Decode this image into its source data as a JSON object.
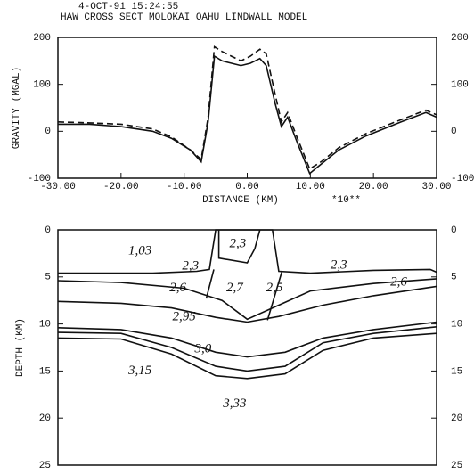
{
  "chart_data": [
    {
      "type": "line",
      "title": "4-OCT-91  15:24:55",
      "subtitle": "HAW CROSS SECT MOLOKAI OAHU    LINDWALL MODEL",
      "xlabel": "DISTANCE (KM)",
      "xlabel_note": "*10**",
      "ylabel": "GRAVITY (MGAL)",
      "x": [
        -30,
        -25,
        -20,
        -15,
        -12,
        -9,
        -7.3,
        -6.2,
        -5.2,
        -4,
        -2.5,
        -1,
        0.5,
        2,
        3,
        4.4,
        5.4,
        6.4,
        7.8,
        9.9,
        11.7,
        14.5,
        18.8,
        24.4,
        28.3,
        30
      ],
      "series": [
        {
          "color": "#111111",
          "dashed": false,
          "values": [
            15,
            15,
            10,
            0,
            -15,
            -40,
            -65,
            20,
            160,
            150,
            145,
            140,
            145,
            155,
            140,
            60,
            10,
            30,
            -20,
            -90,
            -70,
            -40,
            -10,
            20,
            40,
            30
          ]
        },
        {
          "color": "#111111",
          "dashed": true,
          "values": [
            20,
            18,
            15,
            5,
            -12,
            -40,
            -60,
            30,
            180,
            170,
            160,
            150,
            160,
            175,
            165,
            80,
            20,
            40,
            -10,
            -80,
            -65,
            -35,
            -5,
            25,
            45,
            35
          ]
        }
      ],
      "xlim": [
        -30,
        30
      ],
      "ylim": [
        -100,
        200
      ],
      "xticks": [
        {
          "value": -30,
          "label": "-30.00"
        },
        {
          "value": -20,
          "label": "-20.00"
        },
        {
          "value": -10,
          "label": "-10.00"
        },
        {
          "value": 0,
          "label": "0.00"
        },
        {
          "value": 10,
          "label": "10.00"
        },
        {
          "value": 20,
          "label": "20.00"
        },
        {
          "value": 30,
          "label": "30.00"
        }
      ],
      "yticks": [
        -100,
        0,
        100,
        200
      ]
    },
    {
      "type": "line",
      "ylabel": "DEPTH (KM)",
      "inverted": true,
      "xlim": [
        -30,
        30
      ],
      "ylim": [
        0,
        25
      ],
      "yticks": [
        0,
        5,
        10,
        15,
        20,
        25
      ],
      "series": [
        {
          "color": "#111111",
          "x": [
            -30,
            -15,
            -8,
            -6,
            -5,
            4,
            5,
            10,
            20,
            29,
            30
          ],
          "values": [
            4.6,
            4.6,
            4.4,
            4.2,
            0,
            0,
            4.4,
            4.6,
            4.3,
            4.2,
            4.5
          ]
        },
        {
          "color": "#111111",
          "x": [
            -30,
            -20,
            -10,
            -4,
            0,
            5,
            10,
            20,
            30
          ],
          "values": [
            5.4,
            5.6,
            6.2,
            7.5,
            9.5,
            8,
            6.5,
            5.7,
            5.2
          ]
        },
        {
          "color": "#111111",
          "x": [
            -30,
            -20,
            -12,
            -5,
            0,
            5,
            12,
            20,
            30
          ],
          "values": [
            7.6,
            7.8,
            8.3,
            9.3,
            9.8,
            9.2,
            8,
            7,
            6
          ]
        },
        {
          "color": "#111111",
          "x": [
            -30,
            -20,
            -12,
            -5,
            0,
            6,
            12,
            20,
            30
          ],
          "values": [
            10.4,
            10.6,
            11.5,
            13,
            13.5,
            13,
            11.5,
            10.6,
            9.8
          ]
        },
        {
          "color": "#111111",
          "x": [
            -30,
            -20,
            -12,
            -5,
            0,
            6,
            12,
            20,
            30
          ],
          "values": [
            10.9,
            11,
            12.5,
            14.5,
            15,
            14.5,
            12,
            11,
            10.3
          ]
        },
        {
          "color": "#111111",
          "x": [
            -30,
            -20,
            -12,
            -5,
            0,
            6,
            12,
            20,
            30
          ],
          "values": [
            11.5,
            11.6,
            13.2,
            15.5,
            15.8,
            15.3,
            12.8,
            11.5,
            11
          ]
        },
        {
          "color": "#111111",
          "x": [
            -5.3,
            -6.5
          ],
          "values": [
            4.2,
            7.3
          ]
        },
        {
          "color": "#111111",
          "x": [
            5.5,
            3.2
          ],
          "values": [
            4.4,
            9.6
          ]
        },
        {
          "color": "#111111",
          "x": [
            -4.5,
            -4.5,
            0,
            1.2,
            2
          ],
          "values": [
            0,
            3,
            3.5,
            2,
            0
          ]
        }
      ],
      "annotations": [
        "1,03",
        "2,3",
        "2,3",
        "2,3",
        "2,6",
        "2,6",
        "2,7",
        "2,5",
        "2,95",
        "3,0",
        "3,15",
        "3,33"
      ]
    }
  ]
}
